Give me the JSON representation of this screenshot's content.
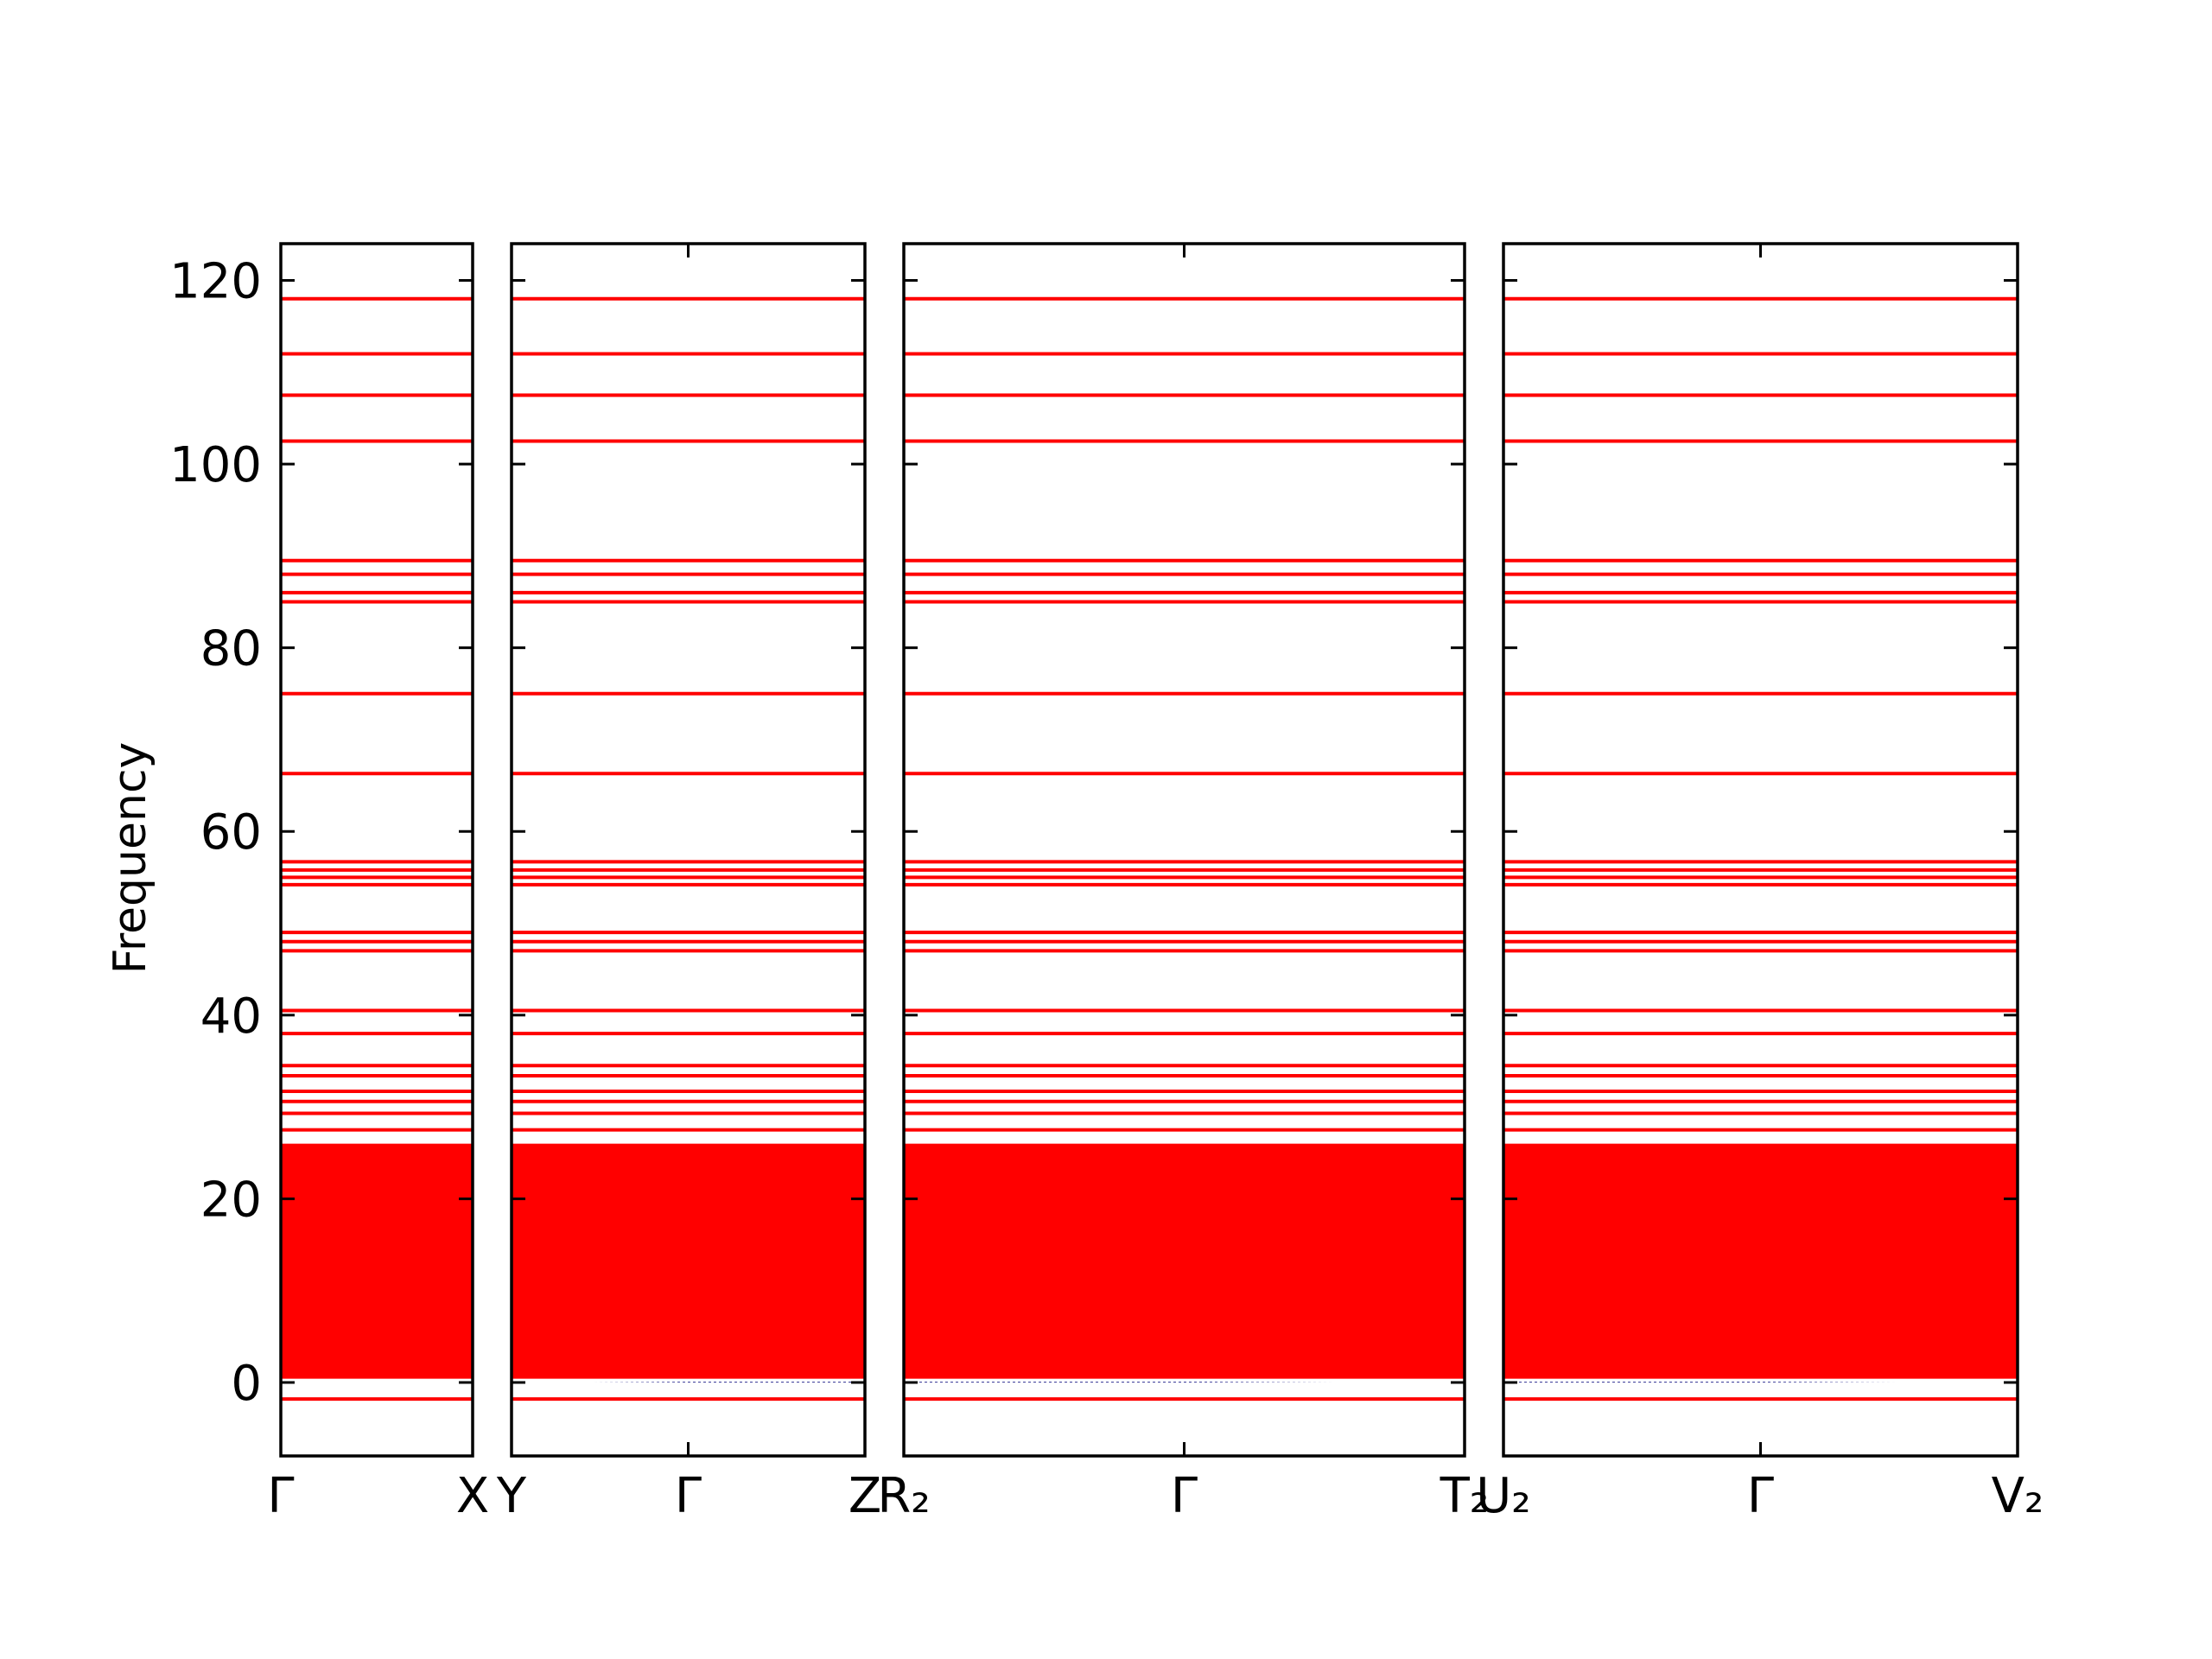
{
  "chart_data": {
    "type": "line",
    "title": "",
    "ylabel": "Frequency",
    "ylim": [
      -8,
      124
    ],
    "yticks": [
      0,
      20,
      40,
      60,
      80,
      100,
      120
    ],
    "grid": false,
    "legend": "none",
    "series_color": "#ff0000",
    "zero_line_color": "#4a4aa0",
    "panels": [
      {
        "ticks": [
          "Γ",
          "X"
        ]
      },
      {
        "ticks": [
          "Y",
          "Γ",
          "Z"
        ]
      },
      {
        "ticks": [
          "R₂",
          "Γ",
          "T₂"
        ]
      },
      {
        "ticks": [
          "U₂",
          "Γ",
          "V₂"
        ]
      }
    ],
    "flat_band_frequencies": [
      118,
      112,
      107.5,
      102.5,
      89.5,
      88,
      86,
      85,
      75,
      66.3,
      56.7,
      55.8,
      55,
      54.2,
      49,
      48,
      47,
      40.5,
      38,
      34.5,
      33.4,
      31.7,
      30.6,
      29.3,
      27.5
    ],
    "continuum_band": {
      "from": 0.5,
      "to": 26
    },
    "low_bands": [
      {
        "name": "",
        "values_per_panel": [
          [
            0.6,
            0.6
          ],
          [
            0.6,
            0.6,
            0.6
          ],
          [
            0.6,
            0.6,
            0.6
          ],
          [
            0.6,
            0.6,
            0.6
          ]
        ]
      },
      {
        "name": "",
        "values_per_panel": [
          [
            -0.1,
            -0.1
          ],
          [
            -0.1,
            -0.3,
            -0.3
          ],
          [
            -0.3,
            -0.3,
            -0.1
          ],
          [
            -0.3,
            -0.3,
            -0.1
          ]
        ]
      },
      {
        "name": "",
        "values_per_panel": [
          [
            -1.8,
            -1.8
          ],
          [
            -1.8,
            -1.8,
            -1.8
          ],
          [
            -1.8,
            -1.8,
            -1.8
          ],
          [
            -1.8,
            -1.8,
            -1.8
          ]
        ]
      }
    ]
  }
}
